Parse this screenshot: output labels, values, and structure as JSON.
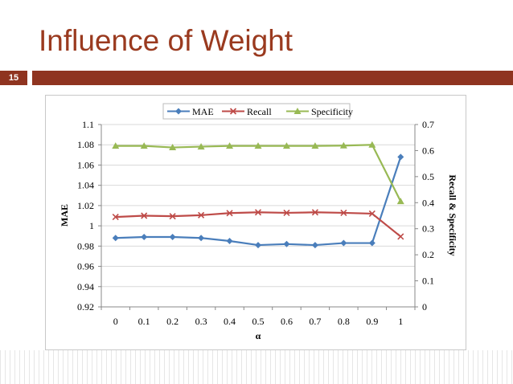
{
  "slide": {
    "title": "Influence of Weight",
    "number": "15"
  },
  "colors": {
    "title": "#9a3a1f",
    "accent_bar": "#8f3420",
    "mae": "#4a7ebb",
    "recall": "#be4b48",
    "specificity": "#98b954"
  },
  "chart_data": {
    "type": "line",
    "x": [
      "0",
      "0.1",
      "0.2",
      "0.3",
      "0.4",
      "0.5",
      "0.6",
      "0.7",
      "0.8",
      "0.9",
      "1"
    ],
    "xlabel": "α",
    "ylabel_left": "MAE",
    "ylabel_right": "Recall & Specificity",
    "ylim_left": [
      0.92,
      1.1
    ],
    "ylim_right": [
      0,
      0.7
    ],
    "yticks_left": [
      "0.92",
      "0.94",
      "0.96",
      "0.98",
      "1",
      "1.02",
      "1.04",
      "1.06",
      "1.08",
      "1.1"
    ],
    "yticks_right": [
      "0",
      "0.1",
      "0.2",
      "0.3",
      "0.4",
      "0.5",
      "0.6",
      "0.7"
    ],
    "legend_position": "top-center",
    "grid": "horizontal",
    "series": [
      {
        "name": "MAE",
        "axis": "left",
        "marker": "diamond",
        "color": "#4a7ebb",
        "values": [
          0.988,
          0.989,
          0.989,
          0.988,
          0.985,
          0.981,
          0.982,
          0.981,
          0.983,
          0.983,
          1.068
        ]
      },
      {
        "name": "Recall",
        "axis": "right",
        "marker": "x",
        "color": "#be4b48",
        "values": [
          0.345,
          0.35,
          0.348,
          0.352,
          0.36,
          0.363,
          0.361,
          0.363,
          0.361,
          0.358,
          0.27
        ]
      },
      {
        "name": "Specificity",
        "axis": "right",
        "marker": "triangle",
        "color": "#98b954",
        "values": [
          0.618,
          0.618,
          0.612,
          0.615,
          0.618,
          0.618,
          0.618,
          0.618,
          0.619,
          0.622,
          0.405
        ]
      }
    ]
  }
}
